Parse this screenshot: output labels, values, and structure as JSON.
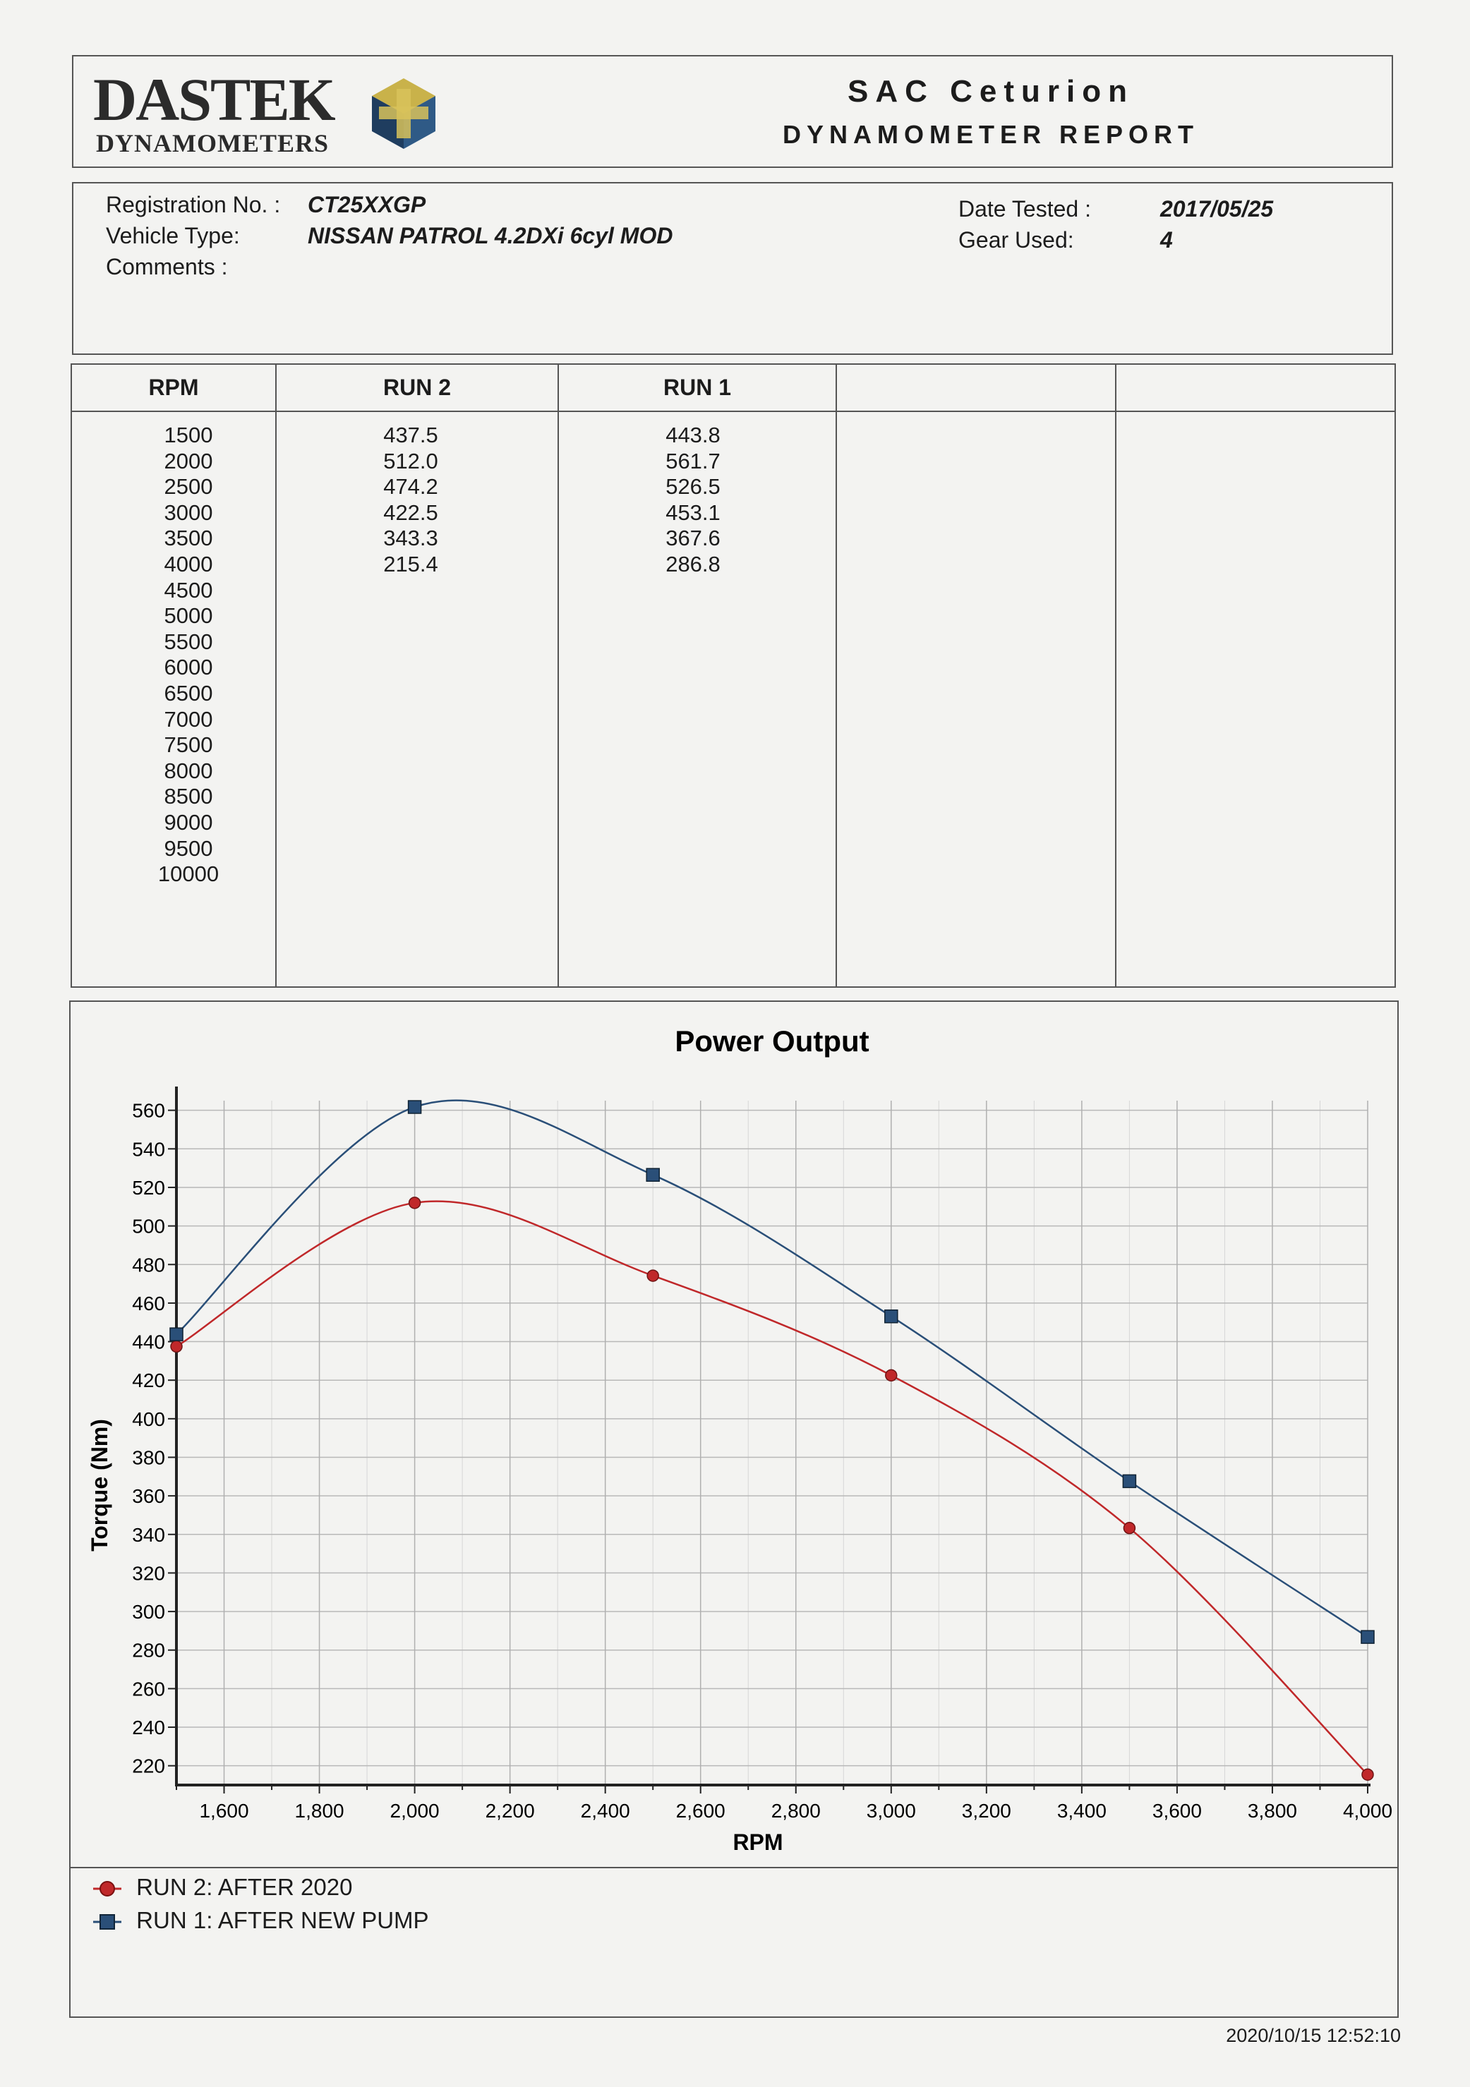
{
  "header": {
    "logo_main": "DASTEK",
    "logo_sub": "DYNAMOMETERS",
    "title": "SAC Ceturion",
    "subtitle": "DYNAMOMETER REPORT"
  },
  "info": {
    "registration_label": "Registration No. :",
    "registration_value": "CT25XXGP",
    "vehicle_label": "Vehicle Type:",
    "vehicle_value": "NISSAN PATROL 4.2DXi 6cyl MOD",
    "comments_label": "Comments :",
    "date_label": "Date Tested :",
    "date_value": "2017/05/25",
    "gear_label": "Gear Used:",
    "gear_value": "4"
  },
  "table": {
    "headers": [
      "RPM",
      "RUN 2",
      "RUN 1",
      "",
      ""
    ],
    "rpm": [
      "1500",
      "2000",
      "2500",
      "3000",
      "3500",
      "4000",
      "4500",
      "5000",
      "5500",
      "6000",
      "6500",
      "7000",
      "7500",
      "8000",
      "8500",
      "9000",
      "9500",
      "10000"
    ],
    "run2": [
      "437.5",
      "512.0",
      "474.2",
      "422.5",
      "343.3",
      "215.4"
    ],
    "run1": [
      "443.8",
      "561.7",
      "526.5",
      "453.1",
      "367.6",
      "286.8"
    ]
  },
  "chart_data": {
    "type": "line",
    "title": "Power Output",
    "xlabel": "RPM",
    "ylabel": "Torque (Nm)",
    "xlim": [
      1500,
      4000
    ],
    "ylim": [
      210,
      565
    ],
    "xticks": [
      1600,
      1800,
      2000,
      2200,
      2400,
      2600,
      2800,
      3000,
      3200,
      3400,
      3600,
      3800,
      4000
    ],
    "yticks": [
      220,
      240,
      260,
      280,
      300,
      320,
      340,
      360,
      380,
      400,
      420,
      440,
      460,
      480,
      500,
      520,
      540,
      560
    ],
    "grid": true,
    "legend_position": "bottom-left",
    "series": [
      {
        "name": "RUN 2: AFTER 2020",
        "color": "#c0282a",
        "marker": "circle",
        "x": [
          1500,
          2000,
          2500,
          3000,
          3500,
          4000
        ],
        "y": [
          437.5,
          512.0,
          474.2,
          422.5,
          343.3,
          215.4
        ]
      },
      {
        "name": "RUN 1: AFTER NEW PUMP",
        "color": "#2a4f78",
        "marker": "square",
        "x": [
          1500,
          2000,
          2500,
          3000,
          3500,
          4000
        ],
        "y": [
          443.8,
          561.7,
          526.5,
          453.1,
          367.6,
          286.8
        ]
      }
    ]
  },
  "footer": {
    "timestamp": "2020/10/15 12:52:10"
  }
}
